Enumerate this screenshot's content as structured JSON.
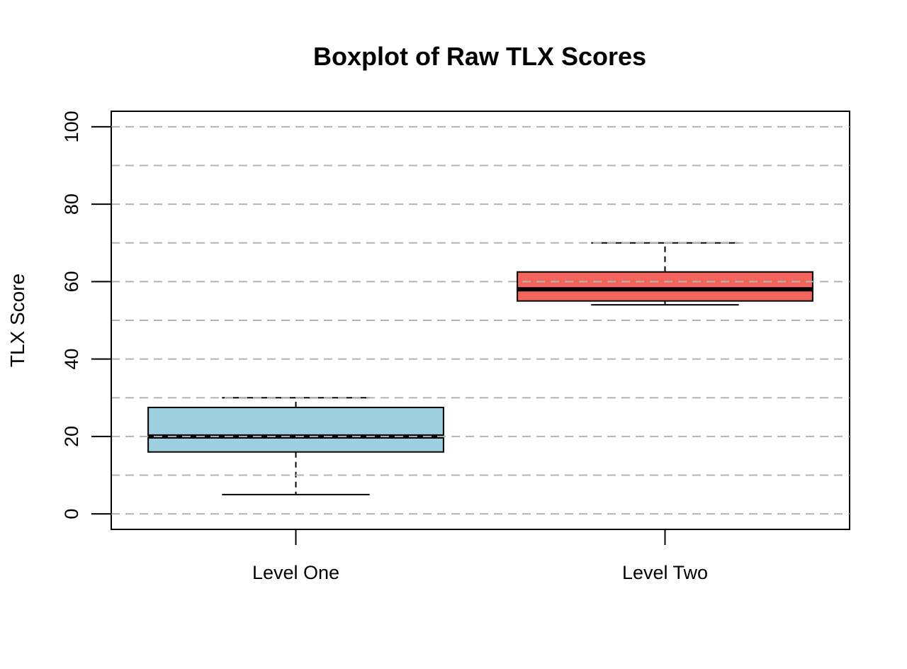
{
  "chart_data": {
    "type": "boxplot",
    "title": "Boxplot of Raw TLX Scores",
    "xlabel": "",
    "ylabel": "TLX Score",
    "ylim": [
      -4,
      104
    ],
    "yticks": [
      0,
      20,
      40,
      60,
      80,
      100
    ],
    "gridlines": [
      0,
      10,
      20,
      30,
      40,
      50,
      60,
      70,
      80,
      90,
      100
    ],
    "grid": true,
    "grid_style": "dashed",
    "categories": [
      "Level One",
      "Level Two"
    ],
    "boxes": [
      {
        "label": "Level One",
        "min": 5,
        "q1": 16,
        "median": 20,
        "q3": 27.5,
        "max": 30,
        "color": "#9ecfe0"
      },
      {
        "label": "Level Two",
        "min": 54,
        "q1": 55,
        "median": 58,
        "q3": 62.5,
        "max": 70,
        "color": "#f2645c"
      }
    ]
  }
}
